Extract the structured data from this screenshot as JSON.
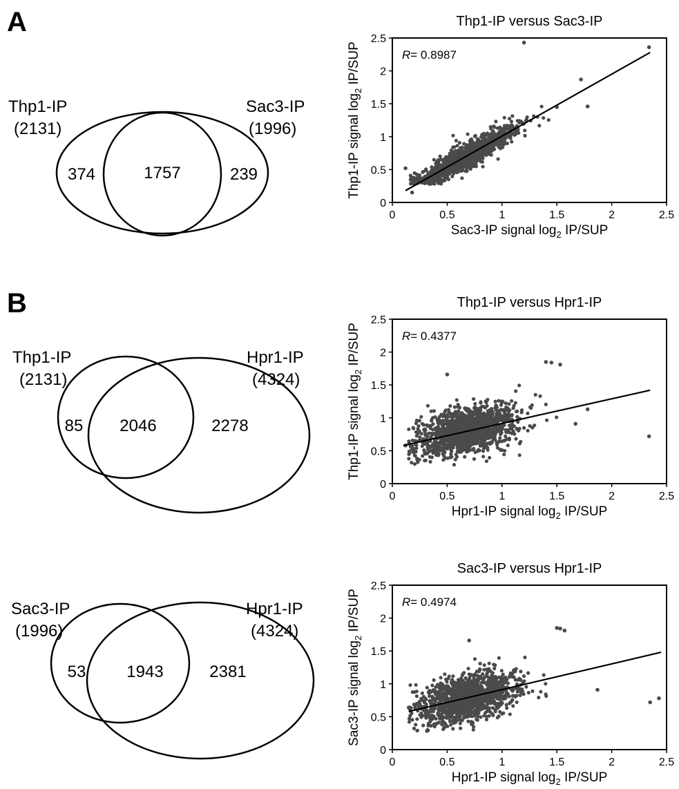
{
  "panels": [
    {
      "letter": "A"
    },
    {
      "letter": "B"
    }
  ],
  "venns": [
    {
      "left": {
        "name": "Thp1-IP",
        "total": "(2131)",
        "only": "374"
      },
      "right": {
        "name": "Sac3-IP",
        "total": "(1996)",
        "only": "239"
      },
      "overlap": "1757"
    },
    {
      "left": {
        "name": "Thp1-IP",
        "total": "(2131)",
        "only": "85"
      },
      "right": {
        "name": "Hpr1-IP",
        "total": "(4324)",
        "only": "2278"
      },
      "overlap": "2046"
    },
    {
      "left": {
        "name": "Sac3-IP",
        "total": "(1996)",
        "only": "53"
      },
      "right": {
        "name": "Hpr1-IP",
        "total": "(4324)",
        "only": "2381"
      },
      "overlap": "1943"
    }
  ],
  "chart_data": [
    {
      "type": "scatter",
      "title": "Thp1-IP versus Sac3-IP",
      "xlabel_pre": "Sac3-IP signal log",
      "xlabel_sub": "2",
      "xlabel_post": " IP/SUP",
      "ylabel_pre": "Thp1-IP signal log",
      "ylabel_sub": "2",
      "ylabel_post": " IP/SUP",
      "r_symbol": "R",
      "r_value": "= 0.8987",
      "xlim": [
        0,
        2.5
      ],
      "ylim": [
        0,
        2.5
      ],
      "xticks": [
        "0",
        "0.5",
        "1",
        "1.5",
        "2",
        "2.5"
      ],
      "yticks": [
        "0",
        "0.5",
        "1",
        "1.5",
        "2",
        "2.5"
      ],
      "fit_line": {
        "x": [
          0.12,
          2.35
        ],
        "y": [
          0.18,
          2.28
        ]
      },
      "n_points": 1300,
      "outliers": [
        [
          1.2,
          2.43
        ],
        [
          2.34,
          2.36
        ],
        [
          1.72,
          1.87
        ],
        [
          1.78,
          1.46
        ],
        [
          0.12,
          0.52
        ],
        [
          0.18,
          0.15
        ],
        [
          1.5,
          1.45
        ]
      ]
    },
    {
      "type": "scatter",
      "title": "Thp1-IP versus Hpr1-IP",
      "xlabel_pre": "Hpr1-IP signal log",
      "xlabel_sub": "2",
      "xlabel_post": " IP/SUP",
      "ylabel_pre": "Thp1-IP signal log",
      "ylabel_sub": "2",
      "ylabel_post": " IP/SUP",
      "r_symbol": "R",
      "r_value": "= 0.4377",
      "xlim": [
        0,
        2.5
      ],
      "ylim": [
        0,
        2.5
      ],
      "xticks": [
        "0",
        "0.5",
        "1",
        "1.5",
        "2",
        "2.5"
      ],
      "yticks": [
        "0",
        "0.5",
        "1",
        "1.5",
        "2",
        "2.5"
      ],
      "fit_line": {
        "x": [
          0.1,
          2.35
        ],
        "y": [
          0.58,
          1.42
        ]
      },
      "n_points": 1300,
      "outliers": [
        [
          1.4,
          1.85
        ],
        [
          1.45,
          1.84
        ],
        [
          1.53,
          1.81
        ],
        [
          1.78,
          1.13
        ],
        [
          1.67,
          0.91
        ],
        [
          2.34,
          0.72
        ],
        [
          0.12,
          0.58
        ],
        [
          0.5,
          1.66
        ]
      ]
    },
    {
      "type": "scatter",
      "title": "Sac3-IP versus Hpr1-IP",
      "xlabel_pre": "Hpr1-IP signal log",
      "xlabel_sub": "2",
      "xlabel_post": " IP/SUP",
      "ylabel_pre": "Sac3-IP signal log",
      "ylabel_sub": "2",
      "ylabel_post": " IP/SUP",
      "r_symbol": "R",
      "r_value": "= 0.4974",
      "xlim": [
        0,
        2.5
      ],
      "ylim": [
        0,
        2.5
      ],
      "xticks": [
        "0",
        "0.5",
        "1",
        "1.5",
        "2",
        "2.5"
      ],
      "yticks": [
        "0",
        "0.5",
        "1",
        "1.5",
        "2",
        "2.5"
      ],
      "fit_line": {
        "x": [
          0.15,
          2.45
        ],
        "y": [
          0.58,
          1.48
        ]
      },
      "n_points": 1300,
      "outliers": [
        [
          1.5,
          1.85
        ],
        [
          1.53,
          1.84
        ],
        [
          1.57,
          1.81
        ],
        [
          1.87,
          0.91
        ],
        [
          2.35,
          0.72
        ],
        [
          2.43,
          0.78
        ],
        [
          0.15,
          0.64
        ],
        [
          0.7,
          1.66
        ]
      ]
    }
  ]
}
